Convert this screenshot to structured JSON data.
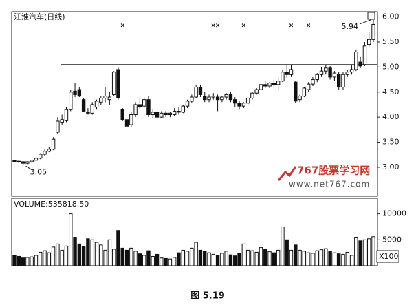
{
  "chart_data": {
    "type": "candlestick",
    "title": "江淮汽车(日线)",
    "open": [
      3.13,
      3.12,
      3.11,
      3.08,
      3.11,
      3.14,
      3.18,
      3.26,
      3.32,
      3.36,
      3.7,
      3.9,
      3.93,
      4.15,
      4.52,
      4.55,
      4.35,
      4.1,
      4.08,
      4.2,
      4.3,
      4.38,
      4.35,
      4.45,
      4.95,
      4.15,
      3.95,
      3.85,
      4.05,
      4.25,
      4.22,
      4.35,
      4.05,
      4.1,
      4.0,
      4.08,
      4.05,
      4.05,
      4.12,
      4.1,
      4.22,
      4.32,
      4.4,
      4.6,
      4.42,
      4.35,
      4.4,
      4.4,
      4.35,
      4.4,
      4.45,
      4.35,
      4.28,
      4.22,
      4.28,
      4.38,
      4.48,
      4.55,
      4.65,
      4.62,
      4.68,
      4.65,
      4.72,
      4.9,
      4.85,
      4.7,
      4.35,
      4.42,
      4.55,
      4.66,
      4.75,
      4.85,
      4.92,
      4.98,
      4.8,
      4.85,
      4.6,
      4.85,
      4.9,
      4.95,
      5.1,
      5.05,
      5.45,
      5.55
    ],
    "high": [
      3.15,
      3.14,
      3.13,
      3.12,
      3.15,
      3.2,
      3.28,
      3.35,
      3.4,
      3.6,
      4.0,
      4.05,
      4.2,
      4.55,
      4.68,
      4.6,
      4.38,
      4.18,
      4.3,
      4.35,
      4.42,
      4.6,
      4.5,
      4.92,
      5.0,
      4.18,
      4.0,
      4.1,
      4.3,
      4.4,
      4.38,
      4.42,
      4.15,
      4.18,
      4.12,
      4.12,
      4.1,
      4.18,
      4.2,
      4.25,
      4.35,
      4.45,
      4.65,
      4.65,
      4.5,
      4.45,
      4.48,
      4.45,
      4.42,
      4.48,
      4.5,
      4.4,
      4.32,
      4.3,
      4.4,
      4.5,
      4.58,
      4.7,
      4.72,
      4.7,
      4.75,
      4.8,
      4.95,
      5.05,
      5.05,
      4.72,
      4.45,
      4.6,
      4.7,
      4.8,
      4.88,
      5.0,
      5.05,
      5.02,
      4.92,
      4.9,
      4.9,
      4.95,
      5.05,
      5.35,
      5.2,
      5.5,
      5.7,
      5.94
    ],
    "low": [
      3.1,
      3.09,
      3.05,
      3.06,
      3.09,
      3.12,
      3.16,
      3.22,
      3.3,
      3.34,
      3.66,
      3.85,
      3.9,
      4.12,
      4.4,
      4.4,
      4.1,
      4.05,
      4.05,
      4.15,
      4.25,
      4.3,
      4.25,
      4.42,
      4.35,
      3.92,
      3.75,
      3.8,
      4.0,
      4.15,
      4.18,
      4.0,
      3.98,
      3.95,
      3.98,
      4.0,
      4.0,
      4.02,
      4.05,
      4.08,
      4.18,
      4.28,
      4.38,
      4.4,
      4.3,
      4.3,
      4.35,
      4.12,
      4.3,
      4.35,
      4.3,
      4.2,
      4.15,
      4.18,
      4.25,
      4.35,
      4.45,
      4.5,
      4.58,
      4.58,
      4.6,
      4.55,
      4.7,
      4.78,
      4.8,
      4.28,
      4.3,
      4.4,
      4.5,
      4.62,
      4.7,
      4.8,
      4.85,
      4.75,
      4.72,
      4.55,
      4.55,
      4.8,
      4.85,
      4.92,
      4.98,
      5.02,
      5.4,
      5.5
    ],
    "close": [
      3.12,
      3.11,
      3.08,
      3.11,
      3.14,
      3.18,
      3.26,
      3.32,
      3.36,
      3.56,
      3.92,
      3.95,
      4.15,
      4.5,
      4.45,
      4.42,
      4.12,
      4.08,
      4.25,
      4.32,
      4.38,
      4.42,
      4.4,
      4.9,
      4.38,
      3.95,
      3.82,
      4.05,
      4.25,
      4.2,
      4.35,
      4.05,
      4.1,
      4.0,
      4.08,
      4.05,
      4.08,
      4.12,
      4.1,
      4.22,
      4.32,
      4.4,
      4.6,
      4.45,
      4.35,
      4.4,
      4.42,
      4.35,
      4.4,
      4.45,
      4.35,
      4.28,
      4.22,
      4.28,
      4.38,
      4.48,
      4.55,
      4.65,
      4.62,
      4.68,
      4.65,
      4.72,
      4.9,
      4.85,
      4.95,
      4.32,
      4.42,
      4.58,
      4.66,
      4.75,
      4.85,
      4.92,
      4.98,
      4.8,
      4.88,
      4.6,
      4.85,
      4.9,
      4.95,
      5.3,
      5.02,
      5.42,
      5.55,
      5.85
    ],
    "volume": [
      2000,
      1800,
      1500,
      1600,
      1700,
      2000,
      2600,
      2900,
      2500,
      3600,
      4200,
      3000,
      3800,
      10000,
      5500,
      4200,
      3700,
      5200,
      5000,
      4500,
      4000,
      3000,
      5000,
      3200,
      6800,
      3400,
      3000,
      3400,
      2800,
      2300,
      2000,
      2900,
      1800,
      2200,
      1500,
      1400,
      1300,
      1600,
      2500,
      3000,
      2800,
      3400,
      4500,
      3000,
      2800,
      2500,
      2200,
      2000,
      2400,
      2800,
      2100,
      1900,
      2400,
      4200,
      3000,
      2900,
      2600,
      3500,
      3200,
      2700,
      2500,
      3000,
      7500,
      5000,
      3000,
      4000,
      3000,
      2800,
      2500,
      2400,
      2900,
      3100,
      3300,
      2800,
      2500,
      2300,
      2200,
      2600,
      2000,
      5500,
      4800,
      5000,
      5200,
      5600
    ],
    "ylim": [
      2.45,
      6.09
    ],
    "yticks": [
      {
        "value": 3,
        "label": "3.00"
      },
      {
        "value": 3.5,
        "label": "3.50"
      },
      {
        "value": 4,
        "label": "4.00"
      },
      {
        "value": 4.5,
        "label": "4.50"
      },
      {
        "value": 5,
        "label": "5.00"
      },
      {
        "value": 5.5,
        "label": "5.50"
      },
      {
        "value": 6,
        "label": "6.00"
      }
    ],
    "resistance": 5.05,
    "signal_symbol": "×",
    "signal_days": [
      25,
      46,
      47,
      53,
      64,
      68
    ],
    "annotations": [
      {
        "label": "3.05",
        "value": 3.05,
        "day": 2
      },
      {
        "label": "5.94",
        "value": 5.94,
        "day": 83
      }
    ],
    "volume_title": "VOLUME:535818.50",
    "volume_ylim": [
      0,
      13000
    ],
    "volume_yticks": [
      5000,
      10000
    ],
    "volume_unit": "X100"
  },
  "watermark": {
    "brand": "767股票学习网",
    "url": "www.net767.com"
  },
  "caption": "图 5.19"
}
